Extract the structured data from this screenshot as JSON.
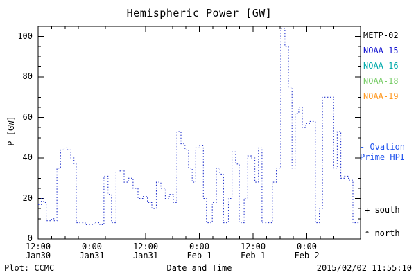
{
  "title": "Hemispheric Power [GW]",
  "ylabel": "P [GW]",
  "xlabel": "Date and Time",
  "footer": {
    "left": "Plot: CCMC",
    "right": "2015/02/02 11:55:10"
  },
  "legend": {
    "items": [
      {
        "label": "METP-02",
        "color": "#000000"
      },
      {
        "label": "NOAA-15",
        "color": "#1515d0"
      },
      {
        "label": "NOAA-16",
        "color": "#00aaaa"
      },
      {
        "label": "NOAA-18",
        "color": "#77cc66"
      },
      {
        "label": "NOAA-19",
        "color": "#ff9922"
      }
    ]
  },
  "side_labels": {
    "ovation": "- Ovation\nPrime HPI",
    "ovation_color": "#2255ee",
    "south": "+ south",
    "north": "* north"
  },
  "chart_data": {
    "type": "line",
    "title": "Hemispheric Power [GW]",
    "xlabel": "Date and Time",
    "ylabel": "P [GW]",
    "xlim_hours": [
      0,
      72
    ],
    "ylim": [
      0,
      105
    ],
    "grid": false,
    "y_ticks": [
      0,
      20,
      40,
      60,
      80,
      100
    ],
    "y_minor_step": 5,
    "x_minor_step_hours": 3,
    "x_ticks": [
      {
        "hour": 0,
        "time": "12:00",
        "date": "Jan30"
      },
      {
        "hour": 12,
        "time": "0:00",
        "date": "Jan31"
      },
      {
        "hour": 24,
        "time": "12:00",
        "date": "Jan31"
      },
      {
        "hour": 36,
        "time": "0:00",
        "date": "Feb 1"
      },
      {
        "hour": 48,
        "time": "12:00",
        "date": "Feb 1"
      },
      {
        "hour": 60,
        "time": "0:00",
        "date": "Feb 2"
      }
    ],
    "x_unit": "hours since 2015-01-30 12:00",
    "series": [
      {
        "name": "Ovation Prime HPI (NOAA satellites)",
        "color": "#2233cc",
        "line_style": "dotted",
        "interpolation": "step",
        "end_hour": 71.8,
        "points_hour_gw": [
          [
            0,
            17
          ],
          [
            0.7,
            20
          ],
          [
            1.2,
            18
          ],
          [
            1.8,
            9
          ],
          [
            3,
            10
          ],
          [
            3.6,
            9
          ],
          [
            4.2,
            35
          ],
          [
            5,
            44
          ],
          [
            5.8,
            45
          ],
          [
            6.6,
            44
          ],
          [
            7.3,
            40
          ],
          [
            8,
            37
          ],
          [
            8.5,
            8
          ],
          [
            10.5,
            7
          ],
          [
            12.5,
            8
          ],
          [
            13.8,
            7
          ],
          [
            14.7,
            31
          ],
          [
            15.6,
            22
          ],
          [
            16.4,
            8
          ],
          [
            17.4,
            33
          ],
          [
            18.3,
            34
          ],
          [
            19.2,
            28
          ],
          [
            20.2,
            30
          ],
          [
            21.2,
            25
          ],
          [
            22.3,
            20
          ],
          [
            23.4,
            21
          ],
          [
            24.4,
            18
          ],
          [
            25.4,
            15
          ],
          [
            26.4,
            28
          ],
          [
            27.4,
            25
          ],
          [
            28.4,
            20
          ],
          [
            29.3,
            22
          ],
          [
            30.2,
            18
          ],
          [
            31,
            53
          ],
          [
            31.9,
            47
          ],
          [
            32.8,
            44
          ],
          [
            33.6,
            35
          ],
          [
            34.4,
            28
          ],
          [
            35.2,
            45
          ],
          [
            36.1,
            46
          ],
          [
            36.9,
            20
          ],
          [
            37.6,
            8
          ],
          [
            38.9,
            18
          ],
          [
            39.8,
            35
          ],
          [
            40.6,
            32
          ],
          [
            41.4,
            8
          ],
          [
            42.5,
            20
          ],
          [
            43.3,
            43
          ],
          [
            44.1,
            37
          ],
          [
            44.9,
            8
          ],
          [
            46,
            20
          ],
          [
            46.8,
            41
          ],
          [
            47.6,
            40
          ],
          [
            48.4,
            28
          ],
          [
            49.2,
            45
          ],
          [
            50,
            8
          ],
          [
            52.3,
            28
          ],
          [
            53.2,
            35
          ],
          [
            54.2,
            104
          ],
          [
            55.1,
            95
          ],
          [
            55.9,
            75
          ],
          [
            56.7,
            35
          ],
          [
            57.4,
            62
          ],
          [
            58.2,
            65
          ],
          [
            59,
            55
          ],
          [
            59.8,
            57
          ],
          [
            60.6,
            58
          ],
          [
            61.9,
            8
          ],
          [
            62.8,
            15
          ],
          [
            63.5,
            70
          ],
          [
            65.2,
            70
          ],
          [
            66,
            35
          ],
          [
            66.8,
            53
          ],
          [
            67.6,
            30
          ],
          [
            68.4,
            31
          ],
          [
            69.3,
            29
          ],
          [
            70.3,
            8
          ]
        ]
      }
    ]
  }
}
